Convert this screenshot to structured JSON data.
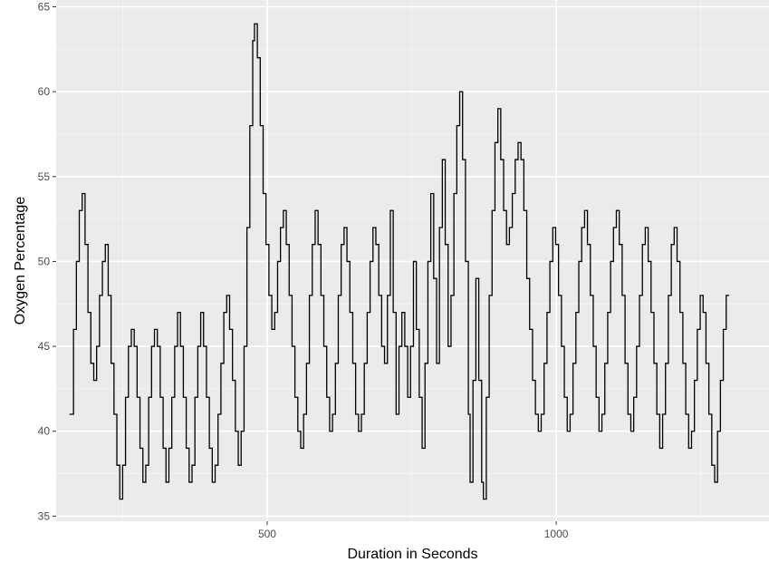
{
  "colors": {
    "panel_background": "#ebebeb",
    "grid_major": "#ffffff",
    "grid_minor": "#f5f5f5",
    "line": "#000000",
    "tick_text": "#4d4d4d",
    "axis_title_text": "#000000"
  },
  "chart_data": {
    "type": "line",
    "geom": "step",
    "title": "",
    "xlabel": "Duration in Seconds",
    "ylabel": "Oxygen Percentage",
    "xlim": [
      135,
      1368
    ],
    "ylim": [
      34.7,
      65.4
    ],
    "x_ticks": [
      500,
      1000
    ],
    "x_tick_labels": [
      "500",
      "1000"
    ],
    "x_minor_ticks": [
      250,
      750,
      1250
    ],
    "y_ticks": [
      35,
      40,
      45,
      50,
      55,
      60,
      65
    ],
    "y_tick_labels": [
      "35",
      "40",
      "45",
      "50",
      "55",
      "60",
      "65"
    ],
    "y_minor_ticks": [
      37.5,
      42.5,
      47.5,
      52.5,
      57.5,
      62.5
    ],
    "grid": true,
    "legend": "none",
    "series": [
      {
        "values": [
          [
            158,
            41
          ],
          [
            165,
            46
          ],
          [
            170,
            50
          ],
          [
            175,
            53
          ],
          [
            180,
            54
          ],
          [
            185,
            51
          ],
          [
            190,
            47
          ],
          [
            195,
            44
          ],
          [
            200,
            43
          ],
          [
            205,
            45
          ],
          [
            210,
            48
          ],
          [
            215,
            50
          ],
          [
            220,
            51
          ],
          [
            225,
            48
          ],
          [
            230,
            44
          ],
          [
            235,
            41
          ],
          [
            240,
            38
          ],
          [
            245,
            36
          ],
          [
            250,
            38
          ],
          [
            255,
            42
          ],
          [
            260,
            45
          ],
          [
            265,
            46
          ],
          [
            270,
            45
          ],
          [
            275,
            42
          ],
          [
            280,
            39
          ],
          [
            285,
            37
          ],
          [
            290,
            38
          ],
          [
            295,
            42
          ],
          [
            300,
            45
          ],
          [
            305,
            46
          ],
          [
            310,
            45
          ],
          [
            315,
            42
          ],
          [
            320,
            39
          ],
          [
            325,
            37
          ],
          [
            330,
            39
          ],
          [
            335,
            42
          ],
          [
            340,
            45
          ],
          [
            345,
            47
          ],
          [
            350,
            45
          ],
          [
            355,
            42
          ],
          [
            360,
            39
          ],
          [
            365,
            37
          ],
          [
            370,
            38
          ],
          [
            375,
            42
          ],
          [
            380,
            45
          ],
          [
            385,
            47
          ],
          [
            390,
            45
          ],
          [
            395,
            42
          ],
          [
            400,
            39
          ],
          [
            405,
            37
          ],
          [
            410,
            38
          ],
          [
            415,
            41
          ],
          [
            420,
            44
          ],
          [
            425,
            47
          ],
          [
            430,
            48
          ],
          [
            435,
            46
          ],
          [
            440,
            43
          ],
          [
            445,
            40
          ],
          [
            450,
            38
          ],
          [
            455,
            40
          ],
          [
            460,
            45
          ],
          [
            465,
            52
          ],
          [
            470,
            58
          ],
          [
            475,
            63
          ],
          [
            478,
            64
          ],
          [
            483,
            62
          ],
          [
            488,
            58
          ],
          [
            493,
            54
          ],
          [
            498,
            51
          ],
          [
            503,
            48
          ],
          [
            508,
            46
          ],
          [
            513,
            47
          ],
          [
            518,
            50
          ],
          [
            523,
            52
          ],
          [
            528,
            53
          ],
          [
            533,
            51
          ],
          [
            538,
            48
          ],
          [
            543,
            45
          ],
          [
            548,
            42
          ],
          [
            553,
            40
          ],
          [
            558,
            39
          ],
          [
            563,
            41
          ],
          [
            568,
            44
          ],
          [
            573,
            48
          ],
          [
            578,
            51
          ],
          [
            583,
            53
          ],
          [
            588,
            51
          ],
          [
            593,
            48
          ],
          [
            598,
            45
          ],
          [
            603,
            42
          ],
          [
            608,
            40
          ],
          [
            613,
            41
          ],
          [
            618,
            44
          ],
          [
            623,
            48
          ],
          [
            628,
            51
          ],
          [
            633,
            52
          ],
          [
            638,
            50
          ],
          [
            643,
            47
          ],
          [
            648,
            44
          ],
          [
            653,
            41
          ],
          [
            658,
            40
          ],
          [
            663,
            41
          ],
          [
            668,
            44
          ],
          [
            673,
            47
          ],
          [
            678,
            50
          ],
          [
            683,
            52
          ],
          [
            688,
            51
          ],
          [
            693,
            48
          ],
          [
            698,
            45
          ],
          [
            703,
            44
          ],
          [
            708,
            48
          ],
          [
            713,
            53
          ],
          [
            718,
            47
          ],
          [
            723,
            41
          ],
          [
            728,
            45
          ],
          [
            733,
            47
          ],
          [
            738,
            45
          ],
          [
            743,
            42
          ],
          [
            748,
            45
          ],
          [
            753,
            50
          ],
          [
            758,
            46
          ],
          [
            763,
            42
          ],
          [
            768,
            39
          ],
          [
            773,
            44
          ],
          [
            778,
            50
          ],
          [
            783,
            54
          ],
          [
            788,
            49
          ],
          [
            793,
            44
          ],
          [
            798,
            52
          ],
          [
            803,
            56
          ],
          [
            808,
            51
          ],
          [
            813,
            45
          ],
          [
            818,
            48
          ],
          [
            823,
            54
          ],
          [
            828,
            58
          ],
          [
            833,
            60
          ],
          [
            838,
            56
          ],
          [
            843,
            50
          ],
          [
            848,
            41
          ],
          [
            851,
            37
          ],
          [
            856,
            43
          ],
          [
            861,
            49
          ],
          [
            866,
            43
          ],
          [
            871,
            37
          ],
          [
            874,
            36
          ],
          [
            879,
            42
          ],
          [
            884,
            48
          ],
          [
            889,
            53
          ],
          [
            894,
            57
          ],
          [
            899,
            59
          ],
          [
            904,
            56
          ],
          [
            909,
            53
          ],
          [
            914,
            51
          ],
          [
            919,
            52
          ],
          [
            924,
            54
          ],
          [
            929,
            56
          ],
          [
            934,
            57
          ],
          [
            939,
            56
          ],
          [
            944,
            53
          ],
          [
            949,
            49
          ],
          [
            954,
            46
          ],
          [
            959,
            43
          ],
          [
            964,
            41
          ],
          [
            969,
            40
          ],
          [
            974,
            41
          ],
          [
            979,
            44
          ],
          [
            984,
            47
          ],
          [
            989,
            50
          ],
          [
            994,
            52
          ],
          [
            999,
            51
          ],
          [
            1004,
            48
          ],
          [
            1009,
            45
          ],
          [
            1014,
            42
          ],
          [
            1019,
            40
          ],
          [
            1024,
            41
          ],
          [
            1029,
            44
          ],
          [
            1034,
            47
          ],
          [
            1039,
            50
          ],
          [
            1044,
            52
          ],
          [
            1049,
            53
          ],
          [
            1054,
            51
          ],
          [
            1059,
            48
          ],
          [
            1064,
            45
          ],
          [
            1069,
            42
          ],
          [
            1074,
            40
          ],
          [
            1079,
            41
          ],
          [
            1084,
            44
          ],
          [
            1089,
            47
          ],
          [
            1094,
            50
          ],
          [
            1099,
            52
          ],
          [
            1104,
            53
          ],
          [
            1109,
            51
          ],
          [
            1114,
            48
          ],
          [
            1119,
            44
          ],
          [
            1124,
            41
          ],
          [
            1129,
            40
          ],
          [
            1134,
            42
          ],
          [
            1139,
            45
          ],
          [
            1144,
            48
          ],
          [
            1149,
            51
          ],
          [
            1154,
            52
          ],
          [
            1159,
            50
          ],
          [
            1164,
            47
          ],
          [
            1169,
            44
          ],
          [
            1174,
            41
          ],
          [
            1179,
            39
          ],
          [
            1184,
            41
          ],
          [
            1189,
            44
          ],
          [
            1194,
            48
          ],
          [
            1199,
            51
          ],
          [
            1204,
            52
          ],
          [
            1209,
            50
          ],
          [
            1214,
            47
          ],
          [
            1219,
            44
          ],
          [
            1224,
            41
          ],
          [
            1229,
            39
          ],
          [
            1234,
            40
          ],
          [
            1239,
            43
          ],
          [
            1244,
            46
          ],
          [
            1249,
            48
          ],
          [
            1254,
            47
          ],
          [
            1259,
            44
          ],
          [
            1264,
            41
          ],
          [
            1269,
            38
          ],
          [
            1274,
            37
          ],
          [
            1279,
            40
          ],
          [
            1284,
            43
          ],
          [
            1289,
            46
          ],
          [
            1294,
            48
          ],
          [
            1299,
            48
          ]
        ]
      }
    ]
  }
}
